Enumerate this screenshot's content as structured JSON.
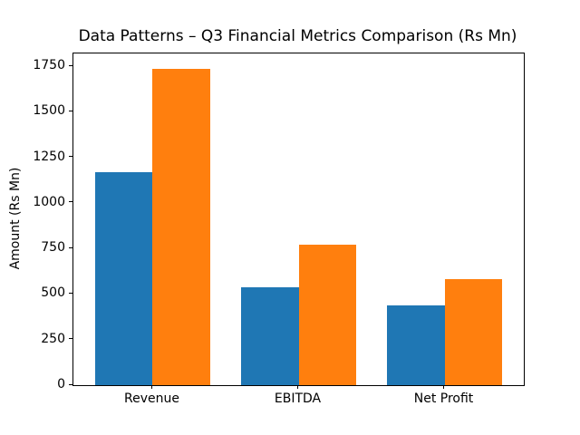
{
  "chart_data": {
    "type": "bar",
    "title": "Data Patterns – Q3 Financial Metrics Comparison (Rs Mn)",
    "xlabel": "",
    "ylabel": "Amount (Rs Mn)",
    "categories": [
      "Revenue",
      "EBITDA",
      "Net Profit"
    ],
    "series": [
      {
        "name": "blue",
        "color": "#1f77b4",
        "values": [
          1170,
          535,
          440
        ]
      },
      {
        "name": "orange",
        "color": "#ff7f0e",
        "values": [
          1735,
          770,
          580
        ]
      }
    ],
    "ylim": [
      0,
      1820
    ],
    "yticks": [
      0,
      250,
      500,
      750,
      1000,
      1250,
      1500,
      1750
    ],
    "grid": false,
    "legend": "none",
    "spine_color": "#000000",
    "background_color": "#ffffff"
  }
}
